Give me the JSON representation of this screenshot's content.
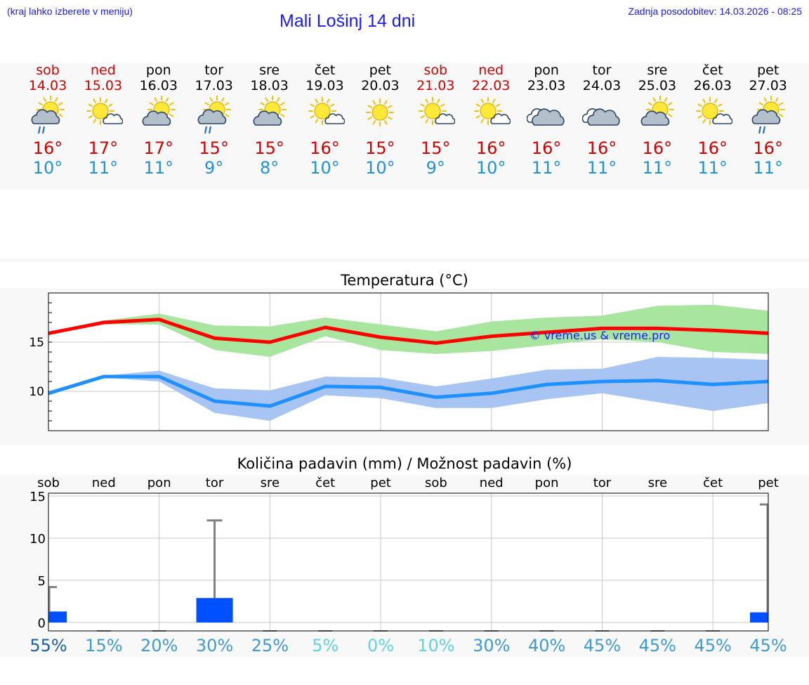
{
  "header": {
    "hint": "(kraj lahko izberete v meniju)",
    "title": "Mali Lošinj 14 dni",
    "updated": "Zadnja posodobitev: 14.03.2026 - 08:25"
  },
  "colors": {
    "weekend": "#d40000",
    "weekday": "#000000",
    "max_line": "#ff0000",
    "max_band": "#a8e6a0",
    "min_line": "#1e90ff",
    "min_band": "#a8c4f2",
    "precip_bar": "#0050ff",
    "prob_dark": "#1a5fa8",
    "prob_mid": "#3f9ad6",
    "prob_light": "#5fd4e0"
  },
  "days": [
    {
      "name": "sob",
      "date": "14.03",
      "weekend": true,
      "icon": "sun-cloud-rain-icon",
      "tmax": "16°",
      "tmin": "10°"
    },
    {
      "name": "ned",
      "date": "15.03",
      "weekend": true,
      "icon": "sun-small-cloud-icon",
      "tmax": "17°",
      "tmin": "11°"
    },
    {
      "name": "pon",
      "date": "16.03",
      "weekend": false,
      "icon": "sun-cloud-icon",
      "tmax": "17°",
      "tmin": "11°"
    },
    {
      "name": "tor",
      "date": "17.03",
      "weekend": false,
      "icon": "sun-cloud-rain-icon",
      "tmax": "15°",
      "tmin": "9°"
    },
    {
      "name": "sre",
      "date": "18.03",
      "weekend": false,
      "icon": "sun-cloud-icon",
      "tmax": "15°",
      "tmin": "8°"
    },
    {
      "name": "čet",
      "date": "19.03",
      "weekend": false,
      "icon": "sun-small-cloud-icon",
      "tmax": "16°",
      "tmin": "10°"
    },
    {
      "name": "pet",
      "date": "20.03",
      "weekend": false,
      "icon": "sun-icon",
      "tmax": "15°",
      "tmin": "10°"
    },
    {
      "name": "sob",
      "date": "21.03",
      "weekend": true,
      "icon": "sun-small-cloud-icon",
      "tmax": "15°",
      "tmin": "9°"
    },
    {
      "name": "ned",
      "date": "22.03",
      "weekend": true,
      "icon": "sun-small-cloud-icon",
      "tmax": "16°",
      "tmin": "10°"
    },
    {
      "name": "pon",
      "date": "23.03",
      "weekend": false,
      "icon": "cloudy-icon",
      "tmax": "16°",
      "tmin": "11°"
    },
    {
      "name": "tor",
      "date": "24.03",
      "weekend": false,
      "icon": "cloudy-icon",
      "tmax": "16°",
      "tmin": "11°"
    },
    {
      "name": "sre",
      "date": "25.03",
      "weekend": false,
      "icon": "sun-cloud-icon",
      "tmax": "16°",
      "tmin": "11°"
    },
    {
      "name": "čet",
      "date": "26.03",
      "weekend": false,
      "icon": "sun-small-cloud-icon",
      "tmax": "16°",
      "tmin": "11°"
    },
    {
      "name": "pet",
      "date": "27.03",
      "weekend": false,
      "icon": "sun-cloud-rain-icon",
      "tmax": "16°",
      "tmin": "11°"
    }
  ],
  "chart_data": [
    {
      "type": "line",
      "title": "Temperatura (°C)",
      "watermark": "© vreme.us & vreme.pro",
      "x_range": [
        0,
        13
      ],
      "ylim": [
        6,
        20
      ],
      "yticks": [
        10,
        15
      ],
      "grid": true,
      "series": [
        {
          "name": "max",
          "values": [
            15.9,
            17.0,
            17.3,
            15.4,
            15.0,
            16.5,
            15.5,
            14.9,
            15.6,
            16.0,
            16.4,
            16.4,
            16.2,
            15.9
          ],
          "band_low": [
            15.9,
            16.8,
            16.8,
            14.2,
            13.5,
            15.6,
            14.2,
            13.8,
            14.1,
            14.7,
            15.3,
            15.0,
            14.0,
            13.8
          ],
          "band_high": [
            15.9,
            17.2,
            17.9,
            16.7,
            16.6,
            17.5,
            16.8,
            16.1,
            17.1,
            17.5,
            17.7,
            18.7,
            18.8,
            18.2
          ]
        },
        {
          "name": "min",
          "values": [
            9.8,
            11.5,
            11.5,
            9.0,
            8.5,
            10.5,
            10.4,
            9.4,
            9.8,
            10.7,
            11.0,
            11.1,
            10.7,
            11.0
          ],
          "band_low": [
            9.8,
            11.4,
            11.0,
            7.8,
            7.0,
            9.6,
            9.3,
            8.3,
            8.3,
            9.2,
            9.8,
            8.9,
            8.0,
            8.8
          ],
          "band_high": [
            9.8,
            11.6,
            12.1,
            10.3,
            10.1,
            11.5,
            11.4,
            10.5,
            11.3,
            12.2,
            12.3,
            13.5,
            13.4,
            13.2
          ]
        }
      ]
    },
    {
      "type": "bar",
      "title": "Količina padavin (mm) / Možnost padavin (%)",
      "categories": [
        "sob",
        "ned",
        "pon",
        "tor",
        "sre",
        "čet",
        "pet",
        "sob",
        "ned",
        "pon",
        "tor",
        "sre",
        "čet",
        "pet"
      ],
      "ylim": [
        0,
        15
      ],
      "yticks": [
        0,
        5,
        10,
        15
      ],
      "values": [
        1.3,
        0,
        0,
        2.9,
        0,
        0,
        0,
        0,
        0,
        0,
        0,
        0,
        0,
        1.2
      ],
      "error_high": [
        4.2,
        0,
        0,
        12.1,
        0,
        0,
        0,
        0,
        0,
        0,
        0,
        0,
        0,
        14.0
      ],
      "probabilities": [
        "55%",
        "15%",
        "20%",
        "30%",
        "25%",
        "5%",
        "0%",
        "10%",
        "30%",
        "40%",
        "45%",
        "45%",
        "45%",
        "45%"
      ],
      "prob_values": [
        55,
        15,
        20,
        30,
        25,
        5,
        0,
        10,
        30,
        40,
        45,
        45,
        45,
        45
      ]
    }
  ]
}
